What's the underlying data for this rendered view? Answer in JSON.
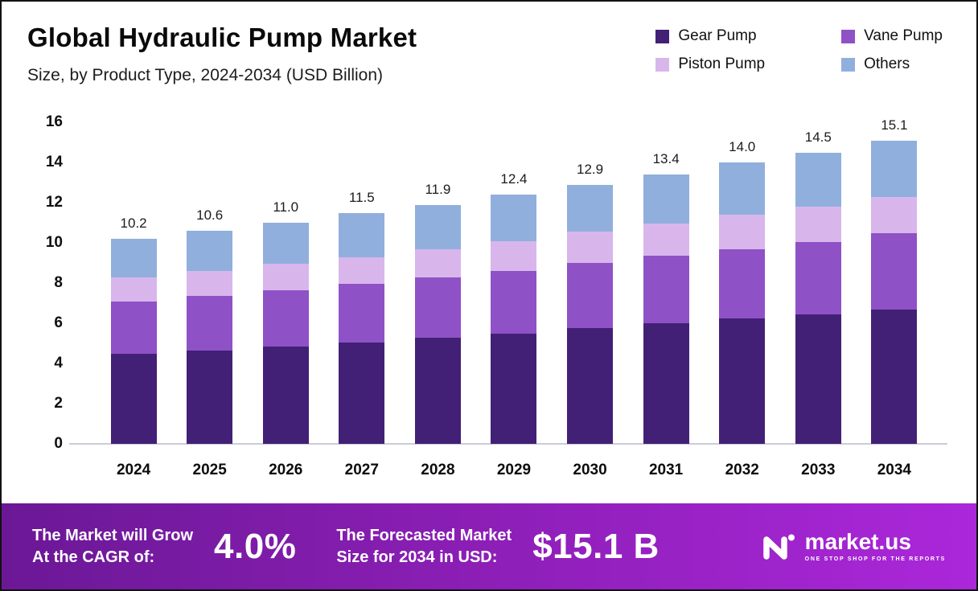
{
  "header": {
    "title": "Global Hydraulic Pump Market",
    "subtitle": "Size, by Product Type, 2024-2034 (USD Billion)"
  },
  "legend": [
    {
      "label": "Gear Pump",
      "color": "#422076"
    },
    {
      "label": "Vane Pump",
      "color": "#8F51C6"
    },
    {
      "label": "Piston Pump",
      "color": "#D8B6EC"
    },
    {
      "label": "Others",
      "color": "#90AFDC"
    }
  ],
  "chart_data": {
    "type": "bar",
    "stacked": true,
    "title": "Global Hydraulic Pump Market Size, by Product Type, 2024-2034 (USD Billion)",
    "xlabel": "",
    "ylabel": "",
    "ylim": [
      0,
      16
    ],
    "yticks": [
      0,
      2,
      4,
      6,
      8,
      10,
      12,
      14,
      16
    ],
    "grid": false,
    "legend_position": "top-right",
    "categories": [
      "2024",
      "2025",
      "2026",
      "2027",
      "2028",
      "2029",
      "2030",
      "2031",
      "2032",
      "2033",
      "2034"
    ],
    "series": [
      {
        "name": "Gear Pump",
        "color": "#422076",
        "values": [
          4.5,
          4.65,
          4.85,
          5.05,
          5.3,
          5.5,
          5.75,
          6.0,
          6.25,
          6.45,
          6.7
        ]
      },
      {
        "name": "Vane Pump",
        "color": "#8F51C6",
        "values": [
          2.6,
          2.7,
          2.8,
          2.9,
          3.0,
          3.1,
          3.25,
          3.35,
          3.45,
          3.6,
          3.8
        ]
      },
      {
        "name": "Piston Pump",
        "color": "#D8B6EC",
        "values": [
          1.2,
          1.25,
          1.3,
          1.35,
          1.4,
          1.5,
          1.55,
          1.6,
          1.7,
          1.75,
          1.8
        ]
      },
      {
        "name": "Others",
        "color": "#90AFDC",
        "values": [
          1.9,
          2.0,
          2.05,
          2.2,
          2.2,
          2.3,
          2.35,
          2.45,
          2.6,
          2.7,
          2.8
        ]
      }
    ],
    "totals": [
      10.2,
      10.6,
      11.0,
      11.5,
      11.9,
      12.4,
      12.9,
      13.4,
      14.0,
      14.5,
      15.1
    ]
  },
  "footer": {
    "growth": {
      "line1": "The Market will Grow",
      "line2": "At the CAGR of:",
      "value": "4.0%"
    },
    "forecast": {
      "line1": "The Forecasted Market",
      "line2": "Size for 2034 in USD:",
      "value": "$15.1 B"
    },
    "brand": {
      "name": "market.us",
      "tagline": "ONE STOP SHOP FOR THE REPORTS"
    },
    "colors": {
      "banner_gradient_left": "#6B1896",
      "banner_gradient_mid": "#8E1FB8",
      "banner_gradient_right": "#AB27DA"
    }
  }
}
